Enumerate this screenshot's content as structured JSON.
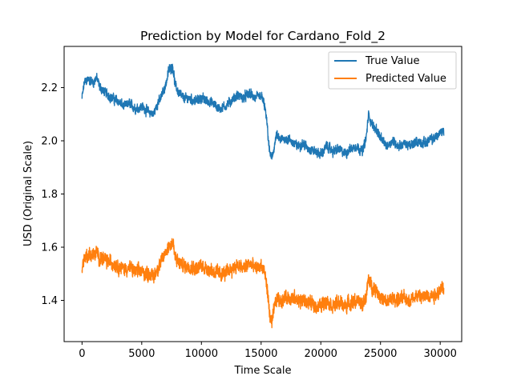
{
  "chart_data": {
    "type": "line",
    "title": "Prediction by Model for Cardano_Fold_2",
    "xlabel": "Time Scale",
    "ylabel": "USD (Original Scale)",
    "xlim": [
      -1500,
      31800
    ],
    "ylim": [
      1.245,
      2.355
    ],
    "xticks": [
      0,
      5000,
      10000,
      15000,
      20000,
      25000,
      30000
    ],
    "xtick_labels": [
      "0",
      "5000",
      "10000",
      "15000",
      "20000",
      "25000",
      "30000"
    ],
    "yticks": [
      1.4,
      1.6,
      1.8,
      2.0,
      2.2
    ],
    "ytick_labels": [
      "1.4",
      "1.6",
      "1.8",
      "2.0",
      "2.2"
    ],
    "grid": false,
    "legend_position": "top-right",
    "series": [
      {
        "name": "True Value",
        "color": "#1f77b4",
        "noise": 0.012,
        "x": [
          0,
          200,
          500,
          1000,
          1200,
          1500,
          2000,
          2500,
          3000,
          3500,
          4000,
          4500,
          5000,
          5500,
          6000,
          6300,
          6600,
          7000,
          7300,
          7600,
          7800,
          8100,
          8500,
          9000,
          9500,
          10000,
          10500,
          11000,
          11500,
          12000,
          12500,
          13000,
          13500,
          14000,
          14500,
          15000,
          15300,
          15500,
          15700,
          15900,
          16100,
          16300,
          16600,
          17000,
          17500,
          18000,
          18500,
          19000,
          19500,
          20000,
          20500,
          21000,
          21500,
          22000,
          22500,
          23000,
          23500,
          23800,
          24000,
          24300,
          24700,
          25000,
          25500,
          26000,
          26500,
          27000,
          27500,
          28000,
          28500,
          29000,
          29500,
          30000,
          30300
        ],
        "y": [
          2.16,
          2.22,
          2.23,
          2.22,
          2.24,
          2.2,
          2.18,
          2.16,
          2.15,
          2.13,
          2.14,
          2.12,
          2.13,
          2.11,
          2.1,
          2.14,
          2.16,
          2.21,
          2.27,
          2.28,
          2.21,
          2.18,
          2.16,
          2.16,
          2.15,
          2.16,
          2.15,
          2.14,
          2.12,
          2.13,
          2.15,
          2.17,
          2.16,
          2.18,
          2.16,
          2.17,
          2.13,
          2.06,
          1.96,
          1.93,
          1.98,
          2.02,
          2.0,
          2.01,
          2.0,
          1.98,
          1.99,
          1.97,
          1.96,
          1.95,
          1.98,
          1.96,
          1.97,
          1.95,
          1.97,
          1.98,
          1.96,
          2.01,
          2.1,
          2.06,
          2.04,
          2.01,
          1.98,
          2.0,
          1.98,
          1.99,
          1.98,
          2.0,
          1.99,
          2.0,
          2.01,
          2.03,
          2.04
        ]
      },
      {
        "name": "Predicted Value",
        "color": "#ff7f0e",
        "noise": 0.018,
        "x": [
          0,
          200,
          500,
          1000,
          1200,
          1500,
          2000,
          2500,
          3000,
          3500,
          4000,
          4500,
          5000,
          5500,
          6000,
          6300,
          6600,
          7000,
          7300,
          7600,
          7800,
          8100,
          8500,
          9000,
          9500,
          10000,
          10500,
          11000,
          11500,
          12000,
          12500,
          13000,
          13500,
          14000,
          14500,
          15000,
          15300,
          15500,
          15700,
          15900,
          16100,
          16300,
          16600,
          17000,
          17500,
          18000,
          18500,
          19000,
          19500,
          20000,
          20500,
          21000,
          21500,
          22000,
          22500,
          23000,
          23500,
          23800,
          24000,
          24300,
          24700,
          25000,
          25500,
          26000,
          26500,
          27000,
          27500,
          28000,
          28500,
          29000,
          29500,
          30000,
          30300
        ],
        "y": [
          1.52,
          1.56,
          1.57,
          1.57,
          1.58,
          1.56,
          1.55,
          1.54,
          1.53,
          1.52,
          1.52,
          1.51,
          1.51,
          1.5,
          1.49,
          1.52,
          1.54,
          1.58,
          1.61,
          1.62,
          1.56,
          1.54,
          1.53,
          1.53,
          1.52,
          1.53,
          1.52,
          1.51,
          1.5,
          1.5,
          1.52,
          1.53,
          1.52,
          1.54,
          1.52,
          1.53,
          1.5,
          1.45,
          1.35,
          1.31,
          1.37,
          1.41,
          1.4,
          1.41,
          1.41,
          1.4,
          1.4,
          1.39,
          1.38,
          1.38,
          1.4,
          1.38,
          1.39,
          1.38,
          1.39,
          1.4,
          1.38,
          1.42,
          1.48,
          1.45,
          1.44,
          1.41,
          1.39,
          1.41,
          1.4,
          1.41,
          1.4,
          1.42,
          1.41,
          1.42,
          1.42,
          1.44,
          1.45
        ]
      }
    ]
  }
}
